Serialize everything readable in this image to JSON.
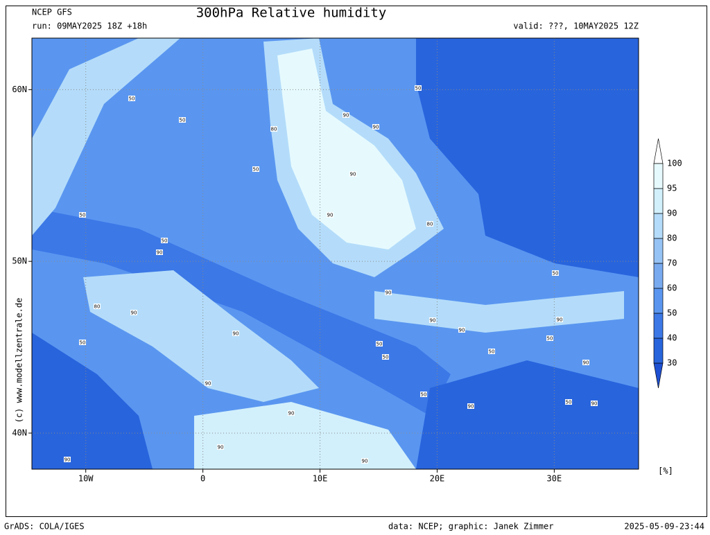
{
  "header": {
    "model": "NCEP GFS",
    "run": "run: 09MAY2025 18Z +18h",
    "title": "300hPa Relative humidity",
    "valid": "valid: ???, 10MAY2025 12Z"
  },
  "map": {
    "lon_range": [
      -14.6,
      37.2
    ],
    "lat_range": [
      37.9,
      63
    ],
    "lon_ticks": [
      {
        "value": -10,
        "label": "10W"
      },
      {
        "value": 0,
        "label": "0"
      },
      {
        "value": 10,
        "label": "10E"
      },
      {
        "value": 20,
        "label": "20E"
      },
      {
        "value": 30,
        "label": "30E"
      }
    ],
    "lat_ticks": [
      {
        "value": 60,
        "label": "60N"
      },
      {
        "value": 50,
        "label": "50N"
      },
      {
        "value": 40,
        "label": "40N"
      }
    ],
    "grid": true,
    "contour_labels": [
      "50",
      "50",
      "80",
      "50",
      "90",
      "90",
      "50",
      "90",
      "50",
      "50",
      "90",
      "90",
      "80",
      "80",
      "90",
      "90",
      "90",
      "50",
      "90",
      "90",
      "90",
      "50",
      "50",
      "50",
      "50",
      "50",
      "90",
      "90",
      "50",
      "90",
      "50",
      "90",
      "90",
      "90",
      "90",
      "90"
    ]
  },
  "colorbar": {
    "levels": [
      30,
      40,
      50,
      60,
      70,
      80,
      90,
      95,
      100
    ],
    "colors": [
      "#1e50d2",
      "#2864dc",
      "#3c78e6",
      "#5a96f0",
      "#78aaf0",
      "#96c3f5",
      "#b4dcfa",
      "#d2f0fc",
      "#e6fafe",
      "#ffffff"
    ],
    "unit": "[%]"
  },
  "footer": {
    "credit": "(c) www.modellzentrale.de",
    "software": "GrADS: COLA/IGES",
    "source": "data: NCEP; graphic: Janek Zimmer",
    "timestamp": "2025-05-09-23:44"
  }
}
